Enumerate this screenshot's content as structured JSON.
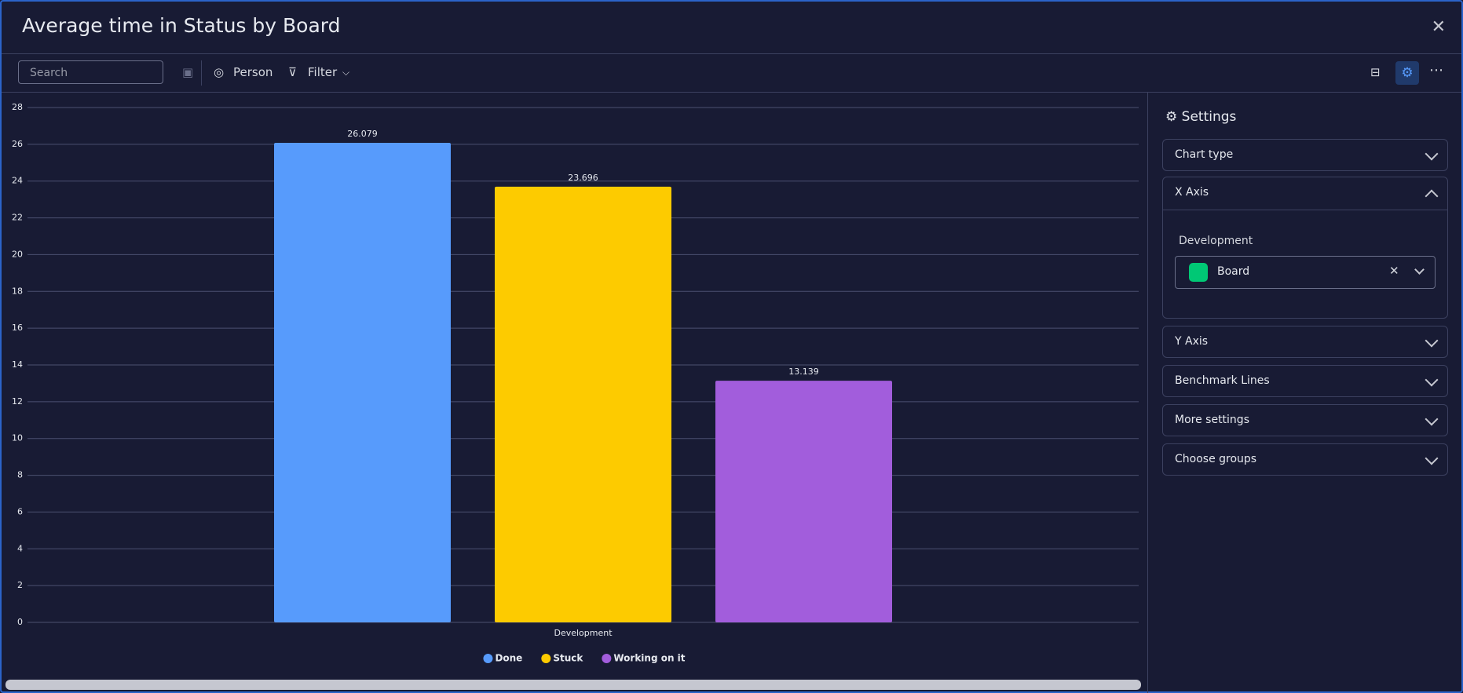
{
  "ui": {
    "search_placeholder": "Search",
    "person": "Person",
    "filter": "Filter",
    "settings": "Settings",
    "sections": [
      "Chart type",
      "X Axis",
      "Y Axis",
      "Benchmark Lines",
      "More settings",
      "Choose groups"
    ],
    "x_axis_group": "Development",
    "x_axis_field": "Board"
  },
  "chart_data": {
    "type": "bar",
    "title": "Average time in Status by Board",
    "categories": [
      "Development"
    ],
    "series": [
      {
        "name": "Done",
        "color": "#579bfc",
        "values": [
          26.079
        ]
      },
      {
        "name": "Stuck",
        "color": "#fdcb00",
        "values": [
          23.696
        ]
      },
      {
        "name": "Working on it",
        "color": "#a25ddc",
        "values": [
          13.139
        ]
      }
    ],
    "ylim": [
      0,
      28
    ],
    "yticks": [
      0,
      2,
      4,
      6,
      8,
      10,
      12,
      14,
      16,
      18,
      20,
      22,
      24,
      26,
      28
    ],
    "grid": true
  }
}
